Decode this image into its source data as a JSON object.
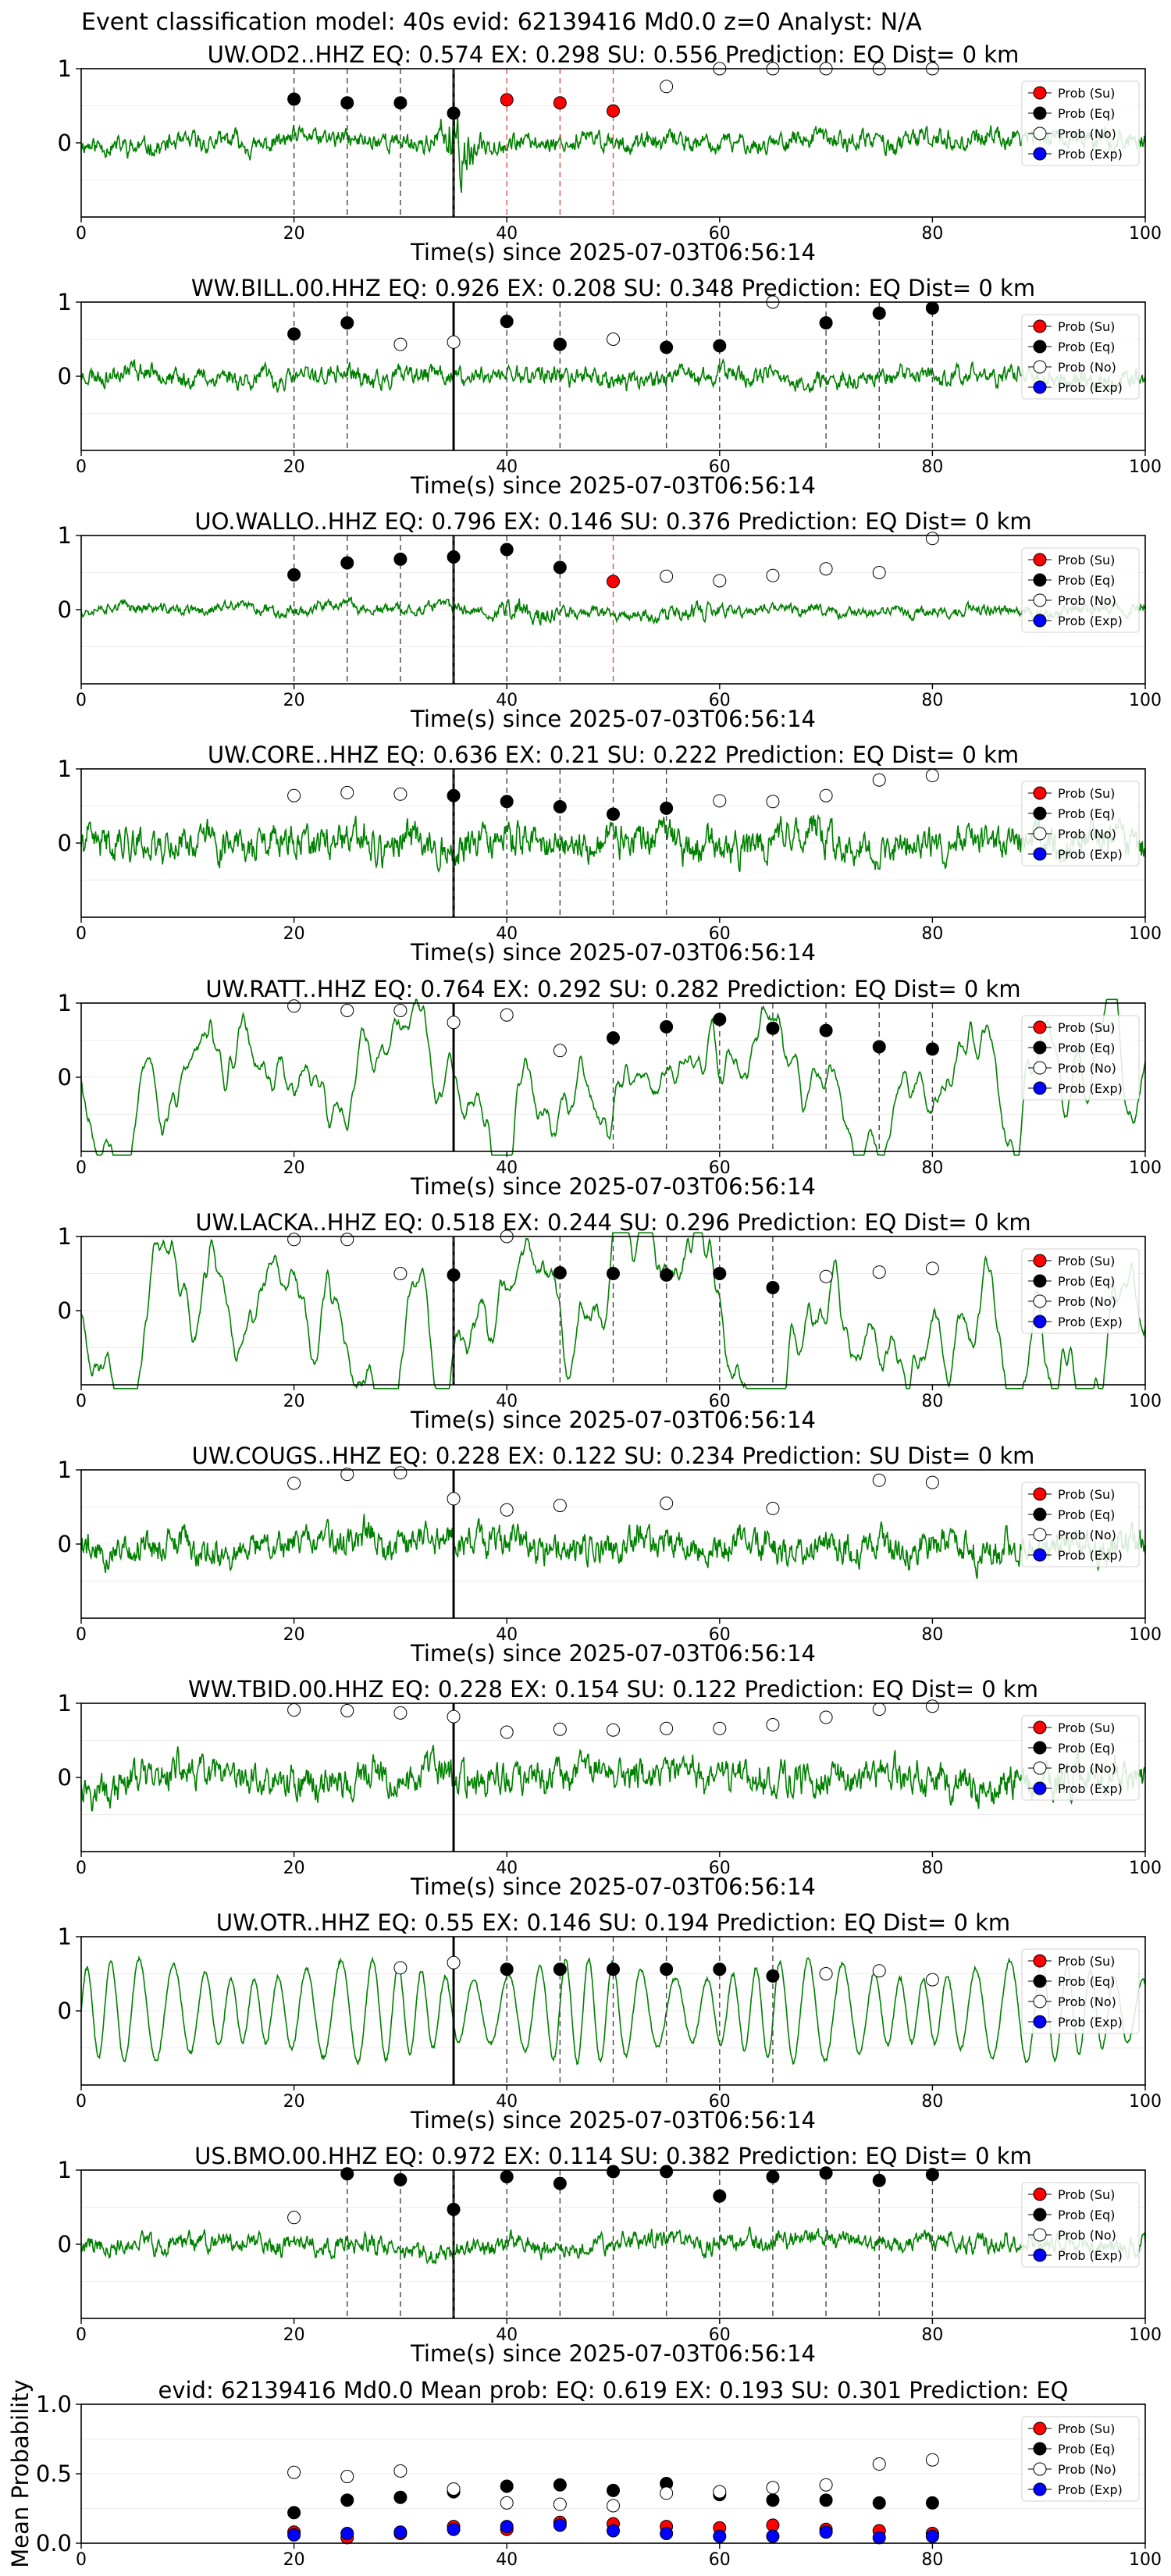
{
  "suptitle": "Event classification model: 40s evid: 62139416 Md0.0 z=0 Analyst: N/A",
  "colors": {
    "waveform": "#008000",
    "su": "#ff0000",
    "eq": "#000000",
    "no": "#ffffff",
    "exp": "#0000ff",
    "pick_line": "#000000"
  },
  "legend": [
    "Prob (Su)",
    "Prob (Eq)",
    "Prob (No)",
    "Prob (Exp)"
  ],
  "chart_data": [
    {
      "type": "line",
      "title": "UW.OD2..HHZ   EQ: 0.574  EX: 0.298  SU: 0.556   Prediction: EQ    Dist= 0 km",
      "xlabel": "Time(s) since 2025-07-03T06:56:14",
      "ylabel": "",
      "xlim": [
        0,
        100
      ],
      "ylim": [
        -1,
        1
      ],
      "xticks": [
        0,
        20,
        40,
        60,
        80,
        100
      ],
      "yticks": [
        0,
        1
      ],
      "legend_position": "top-right",
      "arrival": 35,
      "amp": 0.35,
      "style": "event",
      "seed": 11,
      "points": [
        {
          "x": 20,
          "y": 0.59,
          "cls": "eq"
        },
        {
          "x": 25,
          "y": 0.54,
          "cls": "eq"
        },
        {
          "x": 30,
          "y": 0.54,
          "cls": "eq"
        },
        {
          "x": 35,
          "y": 0.4,
          "cls": "eq"
        },
        {
          "x": 40,
          "y": 0.58,
          "cls": "su"
        },
        {
          "x": 45,
          "y": 0.54,
          "cls": "su"
        },
        {
          "x": 50,
          "y": 0.43,
          "cls": "su"
        },
        {
          "x": 55,
          "y": 0.76,
          "cls": "no"
        },
        {
          "x": 60,
          "y": 1.0,
          "cls": "no"
        },
        {
          "x": 65,
          "y": 1.0,
          "cls": "no"
        },
        {
          "x": 70,
          "y": 1.0,
          "cls": "no"
        },
        {
          "x": 75,
          "y": 1.0,
          "cls": "no"
        },
        {
          "x": 80,
          "y": 1.0,
          "cls": "no"
        }
      ]
    },
    {
      "type": "line",
      "title": "WW.BILL.00.HHZ   EQ: 0.926  EX: 0.208  SU: 0.348   Prediction: EQ    Dist= 0 km",
      "xlabel": "Time(s) since 2025-07-03T06:56:14",
      "ylabel": "",
      "xlim": [
        0,
        100
      ],
      "ylim": [
        -1,
        1
      ],
      "xticks": [
        0,
        20,
        40,
        60,
        80,
        100
      ],
      "yticks": [
        0,
        1
      ],
      "legend_position": "top-right",
      "arrival": 35,
      "amp": 0.35,
      "style": "noisy",
      "seed": 23,
      "points": [
        {
          "x": 20,
          "y": 0.57,
          "cls": "eq"
        },
        {
          "x": 25,
          "y": 0.72,
          "cls": "eq"
        },
        {
          "x": 30,
          "y": 0.43,
          "cls": "no"
        },
        {
          "x": 35,
          "y": 0.46,
          "cls": "no"
        },
        {
          "x": 40,
          "y": 0.74,
          "cls": "eq"
        },
        {
          "x": 45,
          "y": 0.43,
          "cls": "eq"
        },
        {
          "x": 50,
          "y": 0.5,
          "cls": "no"
        },
        {
          "x": 55,
          "y": 0.39,
          "cls": "eq"
        },
        {
          "x": 60,
          "y": 0.41,
          "cls": "eq"
        },
        {
          "x": 65,
          "y": 1.0,
          "cls": "no"
        },
        {
          "x": 70,
          "y": 0.72,
          "cls": "eq"
        },
        {
          "x": 75,
          "y": 0.85,
          "cls": "eq"
        },
        {
          "x": 80,
          "y": 0.92,
          "cls": "eq"
        }
      ]
    },
    {
      "type": "line",
      "title": "UO.WALLO..HHZ   EQ: 0.796  EX: 0.146  SU: 0.376   Prediction: EQ    Dist= 0 km",
      "xlabel": "Time(s) since 2025-07-03T06:56:14",
      "ylabel": "",
      "xlim": [
        0,
        100
      ],
      "ylim": [
        -1,
        1
      ],
      "xticks": [
        0,
        20,
        40,
        60,
        80,
        100
      ],
      "yticks": [
        0,
        1
      ],
      "legend_position": "top-right",
      "arrival": 35,
      "amp": 0.2,
      "style": "event2",
      "seed": 37,
      "points": [
        {
          "x": 20,
          "y": 0.47,
          "cls": "eq"
        },
        {
          "x": 25,
          "y": 0.63,
          "cls": "eq"
        },
        {
          "x": 30,
          "y": 0.68,
          "cls": "eq"
        },
        {
          "x": 35,
          "y": 0.71,
          "cls": "eq"
        },
        {
          "x": 40,
          "y": 0.81,
          "cls": "eq"
        },
        {
          "x": 45,
          "y": 0.57,
          "cls": "eq"
        },
        {
          "x": 50,
          "y": 0.38,
          "cls": "su"
        },
        {
          "x": 55,
          "y": 0.45,
          "cls": "no"
        },
        {
          "x": 60,
          "y": 0.39,
          "cls": "no"
        },
        {
          "x": 65,
          "y": 0.46,
          "cls": "no"
        },
        {
          "x": 70,
          "y": 0.55,
          "cls": "no"
        },
        {
          "x": 75,
          "y": 0.5,
          "cls": "no"
        },
        {
          "x": 80,
          "y": 0.96,
          "cls": "no"
        }
      ]
    },
    {
      "type": "line",
      "title": "UW.CORE..HHZ   EQ: 0.636  EX: 0.21  SU: 0.222   Prediction: EQ    Dist= 0 km",
      "xlabel": "Time(s) since 2025-07-03T06:56:14",
      "ylabel": "",
      "xlim": [
        0,
        100
      ],
      "ylim": [
        -1,
        1
      ],
      "xticks": [
        0,
        20,
        40,
        60,
        80,
        100
      ],
      "yticks": [
        0,
        1
      ],
      "legend_position": "top-right",
      "arrival": 35,
      "amp": 0.6,
      "style": "noisy",
      "seed": 41,
      "points": [
        {
          "x": 20,
          "y": 0.64,
          "cls": "no"
        },
        {
          "x": 25,
          "y": 0.68,
          "cls": "no"
        },
        {
          "x": 30,
          "y": 0.66,
          "cls": "no"
        },
        {
          "x": 35,
          "y": 0.64,
          "cls": "eq"
        },
        {
          "x": 40,
          "y": 0.56,
          "cls": "eq"
        },
        {
          "x": 45,
          "y": 0.49,
          "cls": "eq"
        },
        {
          "x": 50,
          "y": 0.39,
          "cls": "eq"
        },
        {
          "x": 55,
          "y": 0.47,
          "cls": "eq"
        },
        {
          "x": 60,
          "y": 0.57,
          "cls": "no"
        },
        {
          "x": 65,
          "y": 0.56,
          "cls": "no"
        },
        {
          "x": 70,
          "y": 0.64,
          "cls": "no"
        },
        {
          "x": 75,
          "y": 0.85,
          "cls": "no"
        },
        {
          "x": 80,
          "y": 0.91,
          "cls": "no"
        }
      ]
    },
    {
      "type": "line",
      "title": "UW.RATT..HHZ   EQ: 0.764  EX: 0.292  SU: 0.282   Prediction: EQ    Dist= 0 km",
      "xlabel": "Time(s) since 2025-07-03T06:56:14",
      "ylabel": "",
      "xlim": [
        0,
        100
      ],
      "ylim": [
        -1,
        1
      ],
      "xticks": [
        0,
        20,
        40,
        60,
        80,
        100
      ],
      "yticks": [
        0,
        1
      ],
      "legend_position": "top-right",
      "arrival": 35,
      "amp": 0.6,
      "style": "smooth",
      "seed": 53,
      "points": [
        {
          "x": 20,
          "y": 0.96,
          "cls": "no"
        },
        {
          "x": 25,
          "y": 0.9,
          "cls": "no"
        },
        {
          "x": 30,
          "y": 0.9,
          "cls": "no"
        },
        {
          "x": 35,
          "y": 0.74,
          "cls": "no"
        },
        {
          "x": 40,
          "y": 0.84,
          "cls": "no"
        },
        {
          "x": 45,
          "y": 0.36,
          "cls": "no"
        },
        {
          "x": 50,
          "y": 0.53,
          "cls": "eq"
        },
        {
          "x": 55,
          "y": 0.68,
          "cls": "eq"
        },
        {
          "x": 60,
          "y": 0.78,
          "cls": "eq"
        },
        {
          "x": 65,
          "y": 0.66,
          "cls": "eq"
        },
        {
          "x": 70,
          "y": 0.63,
          "cls": "eq"
        },
        {
          "x": 75,
          "y": 0.41,
          "cls": "eq"
        },
        {
          "x": 80,
          "y": 0.38,
          "cls": "eq"
        }
      ]
    },
    {
      "type": "line",
      "title": "UW.LACKA..HHZ   EQ: 0.518  EX: 0.244  SU: 0.296   Prediction: EQ    Dist= 0 km",
      "xlabel": "Time(s) since 2025-07-03T06:56:14",
      "ylabel": "",
      "xlim": [
        0,
        100
      ],
      "ylim": [
        -1,
        1
      ],
      "xticks": [
        0,
        20,
        40,
        60,
        80,
        100
      ],
      "yticks": [
        0,
        1
      ],
      "legend_position": "top-right",
      "arrival": 35,
      "amp": 0.65,
      "style": "smooth",
      "seed": 67,
      "points": [
        {
          "x": 20,
          "y": 0.96,
          "cls": "no"
        },
        {
          "x": 25,
          "y": 0.96,
          "cls": "no"
        },
        {
          "x": 30,
          "y": 0.5,
          "cls": "no"
        },
        {
          "x": 35,
          "y": 0.48,
          "cls": "eq"
        },
        {
          "x": 40,
          "y": 1.0,
          "cls": "no"
        },
        {
          "x": 45,
          "y": 0.51,
          "cls": "eq"
        },
        {
          "x": 50,
          "y": 0.5,
          "cls": "eq"
        },
        {
          "x": 55,
          "y": 0.48,
          "cls": "eq"
        },
        {
          "x": 60,
          "y": 0.5,
          "cls": "eq"
        },
        {
          "x": 65,
          "y": 0.31,
          "cls": "eq"
        },
        {
          "x": 70,
          "y": 0.46,
          "cls": "no"
        },
        {
          "x": 75,
          "y": 0.52,
          "cls": "no"
        },
        {
          "x": 80,
          "y": 0.57,
          "cls": "no"
        }
      ]
    },
    {
      "type": "line",
      "title": "UW.COUGS..HHZ   EQ: 0.228  EX: 0.122  SU: 0.234   Prediction: SU    Dist= 0 km",
      "xlabel": "Time(s) since 2025-07-03T06:56:14",
      "ylabel": "",
      "xlim": [
        0,
        100
      ],
      "ylim": [
        -1,
        1
      ],
      "xticks": [
        0,
        20,
        40,
        60,
        80,
        100
      ],
      "yticks": [
        0,
        1
      ],
      "legend_position": "top-right",
      "arrival": 35,
      "amp": 0.55,
      "style": "noisy",
      "seed": 79,
      "points": [
        {
          "x": 20,
          "y": 0.82,
          "cls": "no"
        },
        {
          "x": 25,
          "y": 0.94,
          "cls": "no"
        },
        {
          "x": 30,
          "y": 0.96,
          "cls": "no"
        },
        {
          "x": 35,
          "y": 0.61,
          "cls": "no"
        },
        {
          "x": 40,
          "y": 0.46,
          "cls": "no"
        },
        {
          "x": 45,
          "y": 0.52,
          "cls": "no"
        },
        {
          "x": 55,
          "y": 0.55,
          "cls": "no"
        },
        {
          "x": 65,
          "y": 0.48,
          "cls": "no"
        },
        {
          "x": 75,
          "y": 0.86,
          "cls": "no"
        },
        {
          "x": 80,
          "y": 0.83,
          "cls": "no"
        }
      ]
    },
    {
      "type": "line",
      "title": "WW.TBID.00.HHZ   EQ: 0.228  EX: 0.154  SU: 0.122   Prediction: EQ    Dist= 0 km",
      "xlabel": "Time(s) since 2025-07-03T06:56:14",
      "ylabel": "",
      "xlim": [
        0,
        100
      ],
      "ylim": [
        -1,
        1
      ],
      "xticks": [
        0,
        20,
        40,
        60,
        80,
        100
      ],
      "yticks": [
        0,
        1
      ],
      "legend_position": "top-right",
      "arrival": 35,
      "amp": 0.6,
      "style": "noisy",
      "seed": 97,
      "points": [
        {
          "x": 20,
          "y": 0.91,
          "cls": "no"
        },
        {
          "x": 25,
          "y": 0.9,
          "cls": "no"
        },
        {
          "x": 30,
          "y": 0.87,
          "cls": "no"
        },
        {
          "x": 35,
          "y": 0.82,
          "cls": "no"
        },
        {
          "x": 40,
          "y": 0.61,
          "cls": "no"
        },
        {
          "x": 45,
          "y": 0.65,
          "cls": "no"
        },
        {
          "x": 50,
          "y": 0.64,
          "cls": "no"
        },
        {
          "x": 55,
          "y": 0.66,
          "cls": "no"
        },
        {
          "x": 60,
          "y": 0.66,
          "cls": "no"
        },
        {
          "x": 65,
          "y": 0.71,
          "cls": "no"
        },
        {
          "x": 70,
          "y": 0.81,
          "cls": "no"
        },
        {
          "x": 75,
          "y": 0.92,
          "cls": "no"
        },
        {
          "x": 80,
          "y": 0.96,
          "cls": "no"
        }
      ]
    },
    {
      "type": "line",
      "title": "UW.OTR..HHZ   EQ: 0.55  EX: 0.146  SU: 0.194   Prediction: EQ    Dist= 0 km",
      "xlabel": "Time(s) since 2025-07-03T06:56:14",
      "ylabel": "",
      "xlim": [
        0,
        100
      ],
      "ylim": [
        -1,
        1
      ],
      "xticks": [
        0,
        20,
        40,
        60,
        80,
        100
      ],
      "yticks": [
        0,
        1
      ],
      "legend_position": "top-right",
      "arrival": 35,
      "amp": 0.7,
      "style": "wave",
      "seed": 103,
      "points": [
        {
          "x": 30,
          "y": 0.58,
          "cls": "no"
        },
        {
          "x": 35,
          "y": 0.65,
          "cls": "no"
        },
        {
          "x": 40,
          "y": 0.56,
          "cls": "eq"
        },
        {
          "x": 45,
          "y": 0.56,
          "cls": "eq"
        },
        {
          "x": 50,
          "y": 0.56,
          "cls": "eq"
        },
        {
          "x": 55,
          "y": 0.56,
          "cls": "eq"
        },
        {
          "x": 60,
          "y": 0.56,
          "cls": "eq"
        },
        {
          "x": 65,
          "y": 0.47,
          "cls": "eq"
        },
        {
          "x": 70,
          "y": 0.5,
          "cls": "no"
        },
        {
          "x": 75,
          "y": 0.54,
          "cls": "no"
        },
        {
          "x": 80,
          "y": 0.42,
          "cls": "no"
        }
      ]
    },
    {
      "type": "line",
      "title": "US.BMO.00.HHZ   EQ: 0.972  EX: 0.114  SU: 0.382   Prediction: EQ    Dist= 0 km",
      "xlabel": "Time(s) since 2025-07-03T06:56:14",
      "ylabel": "",
      "xlim": [
        0,
        100
      ],
      "ylim": [
        -1,
        1
      ],
      "xticks": [
        0,
        20,
        40,
        60,
        80,
        100
      ],
      "yticks": [
        0,
        1
      ],
      "legend_position": "top-right",
      "arrival": 35,
      "amp": 0.35,
      "style": "noisy",
      "seed": 119,
      "points": [
        {
          "x": 20,
          "y": 0.36,
          "cls": "no"
        },
        {
          "x": 25,
          "y": 0.95,
          "cls": "eq"
        },
        {
          "x": 30,
          "y": 0.87,
          "cls": "eq"
        },
        {
          "x": 35,
          "y": 0.47,
          "cls": "eq"
        },
        {
          "x": 40,
          "y": 0.91,
          "cls": "eq"
        },
        {
          "x": 45,
          "y": 0.82,
          "cls": "eq"
        },
        {
          "x": 50,
          "y": 0.98,
          "cls": "eq"
        },
        {
          "x": 55,
          "y": 0.98,
          "cls": "eq"
        },
        {
          "x": 60,
          "y": 0.65,
          "cls": "eq"
        },
        {
          "x": 65,
          "y": 0.91,
          "cls": "eq"
        },
        {
          "x": 70,
          "y": 0.96,
          "cls": "eq"
        },
        {
          "x": 75,
          "y": 0.86,
          "cls": "eq"
        },
        {
          "x": 80,
          "y": 0.94,
          "cls": "eq"
        }
      ]
    },
    {
      "type": "scatter",
      "title": "evid: 62139416  Md0.0   Mean prob:   EQ: 0.619  EX: 0.193  SU: 0.301   Prediction: EQ",
      "xlabel": "",
      "ylabel": "Mean Probability",
      "xlim": [
        0,
        100
      ],
      "ylim": [
        0,
        1
      ],
      "xticks": [
        0,
        20,
        40,
        60,
        80,
        100
      ],
      "yticks": [
        0.0,
        0.5,
        1.0
      ],
      "ytick_labels": [
        "0.0",
        "0.5",
        "1.0"
      ],
      "legend_position": "top-right",
      "x": [
        20,
        25,
        30,
        35,
        40,
        45,
        50,
        55,
        60,
        65,
        70,
        75,
        80
      ],
      "series": [
        {
          "name": "Prob (Su)",
          "cls": "su",
          "values": [
            0.08,
            0.04,
            0.07,
            0.12,
            0.1,
            0.15,
            0.14,
            0.12,
            0.11,
            0.13,
            0.1,
            0.09,
            0.07
          ]
        },
        {
          "name": "Prob (Eq)",
          "cls": "eq",
          "values": [
            0.22,
            0.31,
            0.33,
            0.37,
            0.41,
            0.42,
            0.38,
            0.43,
            0.35,
            0.31,
            0.31,
            0.29,
            0.29
          ]
        },
        {
          "name": "Prob (No)",
          "cls": "no",
          "values": [
            0.51,
            0.48,
            0.52,
            0.39,
            0.29,
            0.28,
            0.27,
            0.36,
            0.37,
            0.4,
            0.42,
            0.57,
            0.6
          ]
        },
        {
          "name": "Prob (Exp)",
          "cls": "exp",
          "values": [
            0.06,
            0.07,
            0.08,
            0.1,
            0.12,
            0.13,
            0.09,
            0.07,
            0.05,
            0.05,
            0.08,
            0.04,
            0.05
          ]
        }
      ]
    }
  ]
}
